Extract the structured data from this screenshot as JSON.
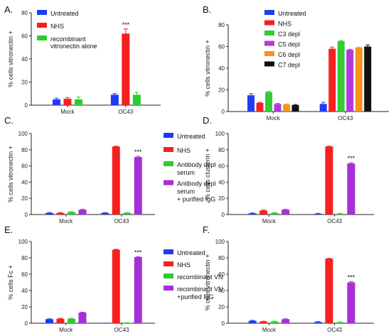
{
  "figure": {
    "panels": [
      {
        "letter": "A."
      },
      {
        "letter": "B."
      },
      {
        "letter": "C."
      },
      {
        "letter": "D."
      },
      {
        "letter": "E."
      },
      {
        "letter": "F."
      }
    ]
  },
  "colors": {
    "Untreated": "#1f3cf0",
    "NHS": "#f52020",
    "recombinant vitronectin alone": "#2ecc2e",
    "C3 depl": "#33cc33",
    "C5 depl": "#b23ad8",
    "C6 depl": "#f7941d",
    "C7 depl": "#111111",
    "Antibody depl serum": "#2ecc2e",
    "Antibody depl serum + purified IgG": "#a52fd6",
    "recombinant VN": "#2ecc2e",
    "recombinant VN +purified IgG": "#a52fd6"
  },
  "chart_data": [
    {
      "type": "bar",
      "ylabel": "% cells vitronectin +",
      "ylim": [
        0,
        80
      ],
      "yticks": [
        0,
        20,
        40,
        60,
        80
      ],
      "categories": [
        "Mock",
        "OC43"
      ],
      "series": [
        {
          "name": "Untreated",
          "values": [
            5,
            9
          ],
          "errors": [
            1,
            1
          ]
        },
        {
          "name": "NHS",
          "values": [
            5.5,
            62
          ],
          "errors": [
            1,
            4
          ]
        },
        {
          "name": "recombinant vitronectin alone",
          "values": [
            5,
            9
          ],
          "errors": [
            2,
            2
          ]
        }
      ],
      "legend_lines": [
        [
          "Untreated"
        ],
        [
          "NHS"
        ],
        [
          "recombinant",
          "vitronectin alone"
        ]
      ],
      "annotations": [
        {
          "category": "OC43",
          "series": "NHS",
          "text": "***"
        }
      ]
    },
    {
      "type": "bar",
      "ylabel": "% cells vitronectin +",
      "ylim": [
        0,
        80
      ],
      "yticks": [
        0,
        20,
        40,
        60,
        80
      ],
      "categories": [
        "Mock",
        "OC43"
      ],
      "series": [
        {
          "name": "Untreated",
          "values": [
            15,
            7
          ],
          "errors": [
            1.5,
            1.5
          ]
        },
        {
          "name": "NHS",
          "values": [
            8,
            58
          ],
          "errors": [
            0.5,
            1.5
          ]
        },
        {
          "name": "C3 depl",
          "values": [
            18,
            65
          ],
          "errors": [
            0.5,
            0.5
          ]
        },
        {
          "name": "C5 depl",
          "values": [
            7,
            57
          ],
          "errors": [
            0.5,
            0.5
          ]
        },
        {
          "name": "C6 depl",
          "values": [
            6.5,
            59
          ],
          "errors": [
            0.5,
            0.5
          ]
        },
        {
          "name": "C7 depl",
          "values": [
            6,
            60
          ],
          "errors": [
            0.5,
            1.5
          ]
        }
      ],
      "legend_lines": [
        [
          "Untreated"
        ],
        [
          "NHS"
        ],
        [
          "C3 depl"
        ],
        [
          "C5 depl"
        ],
        [
          "C6 depl"
        ],
        [
          "C7 depl"
        ]
      ],
      "annotations": []
    },
    {
      "type": "bar",
      "ylabel": "% cells vitronectin +",
      "ylim": [
        0,
        100
      ],
      "yticks": [
        0,
        20,
        40,
        60,
        80,
        100
      ],
      "categories": [
        "Mock",
        "OC43"
      ],
      "series": [
        {
          "name": "Untreated",
          "values": [
            2,
            2
          ],
          "errors": [
            0.5,
            0.5
          ]
        },
        {
          "name": "NHS",
          "values": [
            2,
            84
          ],
          "errors": [
            0.5,
            0.5
          ]
        },
        {
          "name": "Antibody depl serum",
          "values": [
            3,
            2
          ],
          "errors": [
            0.5,
            0.5
          ]
        },
        {
          "name": "Antibody depl serum + purified IgG",
          "values": [
            6,
            71
          ],
          "errors": [
            0.5,
            1
          ]
        }
      ],
      "legend_lines": [
        [
          "Untreated"
        ],
        [
          "NHS"
        ],
        [
          "Antibody depl",
          "serum"
        ],
        [
          "Antibody depl",
          "serum",
          "+ purified IgG"
        ]
      ],
      "annotations": [
        {
          "category": "OC43",
          "series": "Antibody depl serum + purified IgG",
          "text": "***"
        }
      ]
    },
    {
      "type": "bar",
      "ylabel": "% cells clusterin +",
      "ylim": [
        0,
        100
      ],
      "yticks": [
        0,
        20,
        40,
        60,
        80,
        100
      ],
      "categories": [
        "Mock",
        "OC43"
      ],
      "series": [
        {
          "name": "Untreated",
          "values": [
            1.5,
            1
          ],
          "errors": [
            0.5,
            0.5
          ]
        },
        {
          "name": "NHS",
          "values": [
            5,
            84
          ],
          "errors": [
            0.5,
            0.5
          ]
        },
        {
          "name": "Antibody depl serum",
          "values": [
            2,
            1
          ],
          "errors": [
            0.5,
            0.5
          ]
        },
        {
          "name": "Antibody depl serum + purified IgG",
          "values": [
            6,
            63
          ],
          "errors": [
            0.5,
            1
          ]
        }
      ],
      "legend_lines": [],
      "annotations": [
        {
          "category": "OC43",
          "series": "Antibody depl serum + purified IgG",
          "text": "***"
        }
      ]
    },
    {
      "type": "bar",
      "ylabel": "% cells Fc +",
      "ylim": [
        0,
        100
      ],
      "yticks": [
        0,
        20,
        40,
        60,
        80,
        100
      ],
      "categories": [
        "Mock",
        "OC43"
      ],
      "series": [
        {
          "name": "Untreated",
          "values": [
            5,
            0
          ],
          "errors": [
            0.5,
            0.2
          ]
        },
        {
          "name": "NHS",
          "values": [
            5.5,
            90
          ],
          "errors": [
            0.5,
            0.5
          ]
        },
        {
          "name": "recombinant VN",
          "values": [
            5.5,
            0.5
          ],
          "errors": [
            0.5,
            0.2
          ]
        },
        {
          "name": "recombinant VN +purified IgG",
          "values": [
            13,
            81
          ],
          "errors": [
            0.5,
            0.5
          ]
        }
      ],
      "legend_lines": [
        [
          "Untreated"
        ],
        [
          "NHS"
        ],
        [
          "recombinant VN"
        ],
        [
          "recombinant VN",
          "+purified IgG"
        ]
      ],
      "annotations": [
        {
          "category": "OC43",
          "series": "recombinant VN +purified IgG",
          "text": "***"
        }
      ]
    },
    {
      "type": "bar",
      "ylabel": "% cells vitronectin +",
      "ylim": [
        0,
        100
      ],
      "yticks": [
        0,
        20,
        40,
        60,
        80,
        100
      ],
      "categories": [
        "Mock",
        "OC43"
      ],
      "series": [
        {
          "name": "Untreated",
          "values": [
            3,
            1.5
          ],
          "errors": [
            0.5,
            0.5
          ]
        },
        {
          "name": "NHS",
          "values": [
            2,
            79
          ],
          "errors": [
            0.5,
            0.5
          ]
        },
        {
          "name": "recombinant VN",
          "values": [
            2,
            1
          ],
          "errors": [
            0.5,
            0.5
          ]
        },
        {
          "name": "recombinant VN +purified IgG",
          "values": [
            5,
            50
          ],
          "errors": [
            0.5,
            1
          ]
        }
      ],
      "legend_lines": [],
      "annotations": [
        {
          "category": "OC43",
          "series": "recombinant VN +purified IgG",
          "text": "***"
        }
      ]
    }
  ]
}
